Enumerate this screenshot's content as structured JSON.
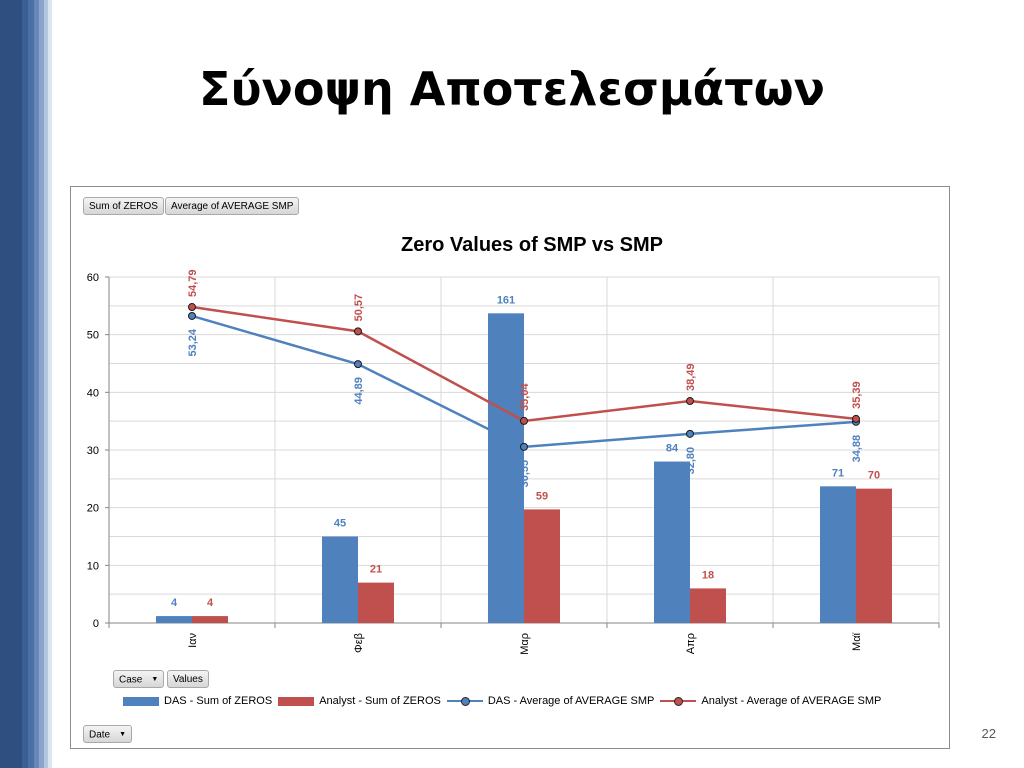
{
  "slide": {
    "title": "Σύνοψη Αποτελεσμάτων",
    "page_number": "22"
  },
  "pivot": {
    "value_buttons": [
      "Sum of ZEROS",
      "Average of AVERAGE SMP"
    ],
    "axis_buttons": [
      {
        "label": "Case",
        "dropdown": true
      },
      {
        "label": "Values",
        "dropdown": false
      }
    ],
    "filter_button": {
      "label": "Date",
      "dropdown": true
    }
  },
  "colors": {
    "das_bar": "#4f81bd",
    "analyst_bar": "#c0504d",
    "das_line": "#4f81bd",
    "analyst_line": "#c0504d",
    "axis": "#868686",
    "grid": "#d9d9d9",
    "accent_stripes": [
      "#2e4f7f",
      "#3b5f93",
      "#4a6fa5",
      "#6687b8",
      "#8aa5cb",
      "#b3c6e0",
      "#dbe5f1"
    ]
  },
  "chart_data": {
    "type": "bar",
    "title": "Zero Values of SMP vs SMP",
    "categories": [
      "Ιαν",
      "Φεβ",
      "Μαρ",
      "Απρ",
      "Μαϊ"
    ],
    "ylim": [
      0,
      60
    ],
    "yticks": [
      0,
      10,
      20,
      30,
      40,
      50,
      60
    ],
    "grid": true,
    "legend_position": "bottom",
    "series": [
      {
        "name": "DAS - Sum of ZEROS",
        "kind": "bar",
        "color": "#4f81bd",
        "values": [
          1.2,
          15,
          53.7,
          28,
          23.7
        ],
        "labels": [
          "4",
          "45",
          "161",
          "84",
          "71"
        ]
      },
      {
        "name": "Analyst - Sum of ZEROS",
        "kind": "bar",
        "color": "#c0504d",
        "values": [
          1.2,
          7,
          19.7,
          6,
          23.3
        ],
        "labels": [
          "4",
          "21",
          "59",
          "18",
          "70"
        ]
      },
      {
        "name": "DAS - Average of AVERAGE SMP",
        "kind": "line",
        "color": "#4f81bd",
        "values": [
          53.24,
          44.89,
          30.55,
          32.8,
          34.88
        ],
        "labels": [
          "53,24",
          "44,89",
          "30,55",
          "32,80",
          "34,88"
        ]
      },
      {
        "name": "Analyst - Average of AVERAGE SMP",
        "kind": "line",
        "color": "#c0504d",
        "values": [
          54.79,
          50.57,
          35.04,
          38.49,
          35.39
        ],
        "labels": [
          "54,79",
          "50,57",
          "35,04",
          "38,49",
          "35,39"
        ]
      }
    ]
  }
}
